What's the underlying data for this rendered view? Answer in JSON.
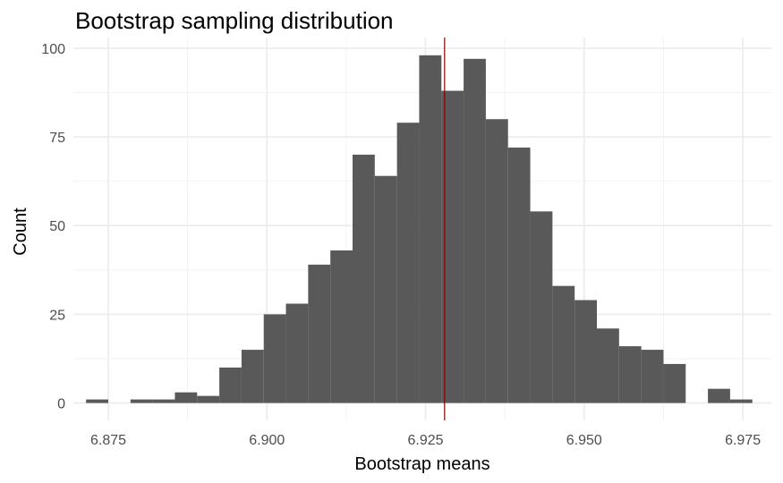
{
  "chart_data": {
    "type": "bar",
    "title": "Bootstrap sampling distribution",
    "xlabel": "Bootstrap means",
    "ylabel": "Count",
    "xlim": [
      6.8695,
      6.9795
    ],
    "ylim": [
      -4.9,
      103.0
    ],
    "x_ticks": [
      6.875,
      6.9,
      6.925,
      6.95,
      6.975
    ],
    "x_tick_labels": [
      "6.875",
      "6.900",
      "6.925",
      "6.950",
      "6.975"
    ],
    "y_ticks": [
      0,
      25,
      50,
      75,
      100
    ],
    "y_tick_labels": [
      "0",
      "25",
      "50",
      "75",
      "100"
    ],
    "grid": true,
    "bin_start": 6.8715,
    "bin_width": 0.0035,
    "bar_color": "#595959",
    "values": [
      1,
      0,
      1,
      1,
      3,
      2,
      10,
      15,
      25,
      28,
      39,
      43,
      70,
      64,
      79,
      98,
      88,
      97,
      80,
      72,
      54,
      33,
      29,
      21,
      16,
      15,
      11,
      0,
      4,
      1
    ],
    "reference_line": {
      "x": 6.928,
      "color": "#8b0000"
    }
  }
}
